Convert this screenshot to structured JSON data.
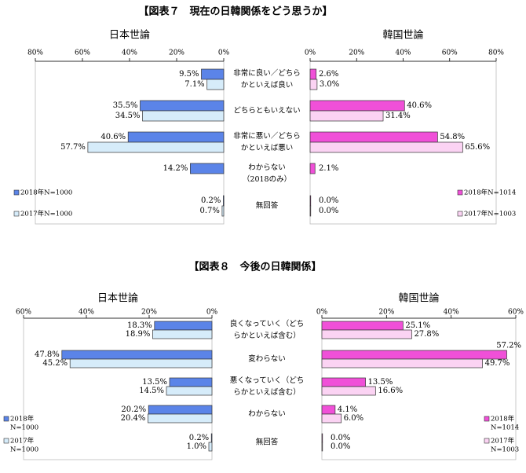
{
  "figure_titles": [
    "【図表７　現在の日韓関係をどう思うか】",
    "【図表８　今後の日韓関係】"
  ],
  "chart_data": [
    {
      "type": "bar",
      "orientation": "horizontal",
      "categories": [
        [
          "非常に良い／どちら",
          "かといえば良い"
        ],
        [
          "どちらともいえない"
        ],
        [
          "非常に悪い／どちら",
          "かといえば悪い"
        ],
        [
          "わからない",
          "（2018のみ）"
        ],
        [
          "無回答"
        ]
      ],
      "panels": [
        {
          "title": "日本世論",
          "x_reversed": true,
          "xlim": [
            0,
            80
          ],
          "xticks": [
            {
              "value": 0,
              "label": "0%"
            },
            {
              "value": 20,
              "label": "20%"
            },
            {
              "value": 40,
              "label": "40%"
            },
            {
              "value": 60,
              "label": "60%"
            },
            {
              "value": 80,
              "label": "80%"
            }
          ],
          "series": [
            {
              "name": "2018年N=1000",
              "color": "#5b84e8",
              "values": [
                9.5,
                35.5,
                40.6,
                14.2,
                0.2
              ],
              "value_labels": [
                "9.5%",
                "35.5%",
                "40.6%",
                "14.2%",
                "0.2%"
              ]
            },
            {
              "name": "2017年N=1000",
              "color": "#d6ecfa",
              "values": [
                7.1,
                34.5,
                57.7,
                null,
                0.7
              ],
              "value_labels": [
                "7.1%",
                "34.5%",
                "57.7%",
                null,
                "0.7%"
              ]
            }
          ]
        },
        {
          "title": "韓国世論",
          "x_reversed": false,
          "xlim": [
            0,
            80
          ],
          "xticks": [
            {
              "value": 0,
              "label": "0%"
            },
            {
              "value": 20,
              "label": "20%"
            },
            {
              "value": 40,
              "label": "40%"
            },
            {
              "value": 60,
              "label": "60%"
            },
            {
              "value": 80,
              "label": "80%"
            }
          ],
          "series": [
            {
              "name": "2018年N=1014",
              "color": "#f050d8",
              "values": [
                2.6,
                40.6,
                54.8,
                2.1,
                0.0
              ],
              "value_labels": [
                "2.6%",
                "40.6%",
                "54.8%",
                "2.1%",
                "0.0%"
              ]
            },
            {
              "name": "2017年N=1003",
              "color": "#fbd3f3",
              "values": [
                3.0,
                31.4,
                65.6,
                null,
                0.0
              ],
              "value_labels": [
                "3.0%",
                "31.4%",
                "65.6%",
                null,
                "0.0%"
              ]
            }
          ]
        }
      ]
    },
    {
      "type": "bar",
      "orientation": "horizontal",
      "categories": [
        [
          "良くなっていく（どち",
          "らかといえば含む）"
        ],
        [
          "変わらない"
        ],
        [
          "悪くなっていく（どち",
          "らかといえば含む）"
        ],
        [
          "わからない"
        ],
        [
          "無回答"
        ]
      ],
      "panels": [
        {
          "title": "日本世論",
          "x_reversed": true,
          "xlim": [
            0,
            60
          ],
          "xticks": [
            {
              "value": 0,
              "label": "0%"
            },
            {
              "value": 20,
              "label": "20%"
            },
            {
              "value": 40,
              "label": "40%"
            },
            {
              "value": 60,
              "label": "60%"
            }
          ],
          "series": [
            {
              "name": [
                "2018年",
                "N=1000"
              ],
              "color": "#5b84e8",
              "values": [
                18.3,
                47.8,
                13.5,
                20.2,
                0.2
              ],
              "value_labels": [
                "18.3%",
                "47.8%",
                "13.5%",
                "20.2%",
                "0.2%"
              ]
            },
            {
              "name": [
                "2017年",
                "N=1000"
              ],
              "color": "#d6ecfa",
              "values": [
                18.9,
                45.2,
                14.5,
                20.4,
                1.0
              ],
              "value_labels": [
                "18.9%",
                "45.2%",
                "14.5%",
                "20.4%",
                "1.0%"
              ]
            }
          ]
        },
        {
          "title": "韓国世論",
          "x_reversed": false,
          "xlim": [
            0,
            60
          ],
          "xticks": [
            {
              "value": 0,
              "label": "0%"
            },
            {
              "value": 20,
              "label": "20%"
            },
            {
              "value": 40,
              "label": "40%"
            },
            {
              "value": 60,
              "label": "60%"
            }
          ],
          "series": [
            {
              "name": [
                "2018年",
                "N=1014"
              ],
              "color": "#f050d8",
              "values": [
                25.1,
                57.2,
                13.5,
                4.1,
                0.0
              ],
              "value_labels": [
                "25.1%",
                "57.2%",
                "13.5%",
                "4.1%",
                "0.0%"
              ]
            },
            {
              "name": [
                "2017年",
                "N=1003"
              ],
              "color": "#fbd3f3",
              "values": [
                27.8,
                49.7,
                16.6,
                6.0,
                0.0
              ],
              "value_labels": [
                "27.8%",
                "49.7%",
                "16.6%",
                "6.0%",
                "0.0%"
              ]
            }
          ]
        }
      ]
    }
  ]
}
